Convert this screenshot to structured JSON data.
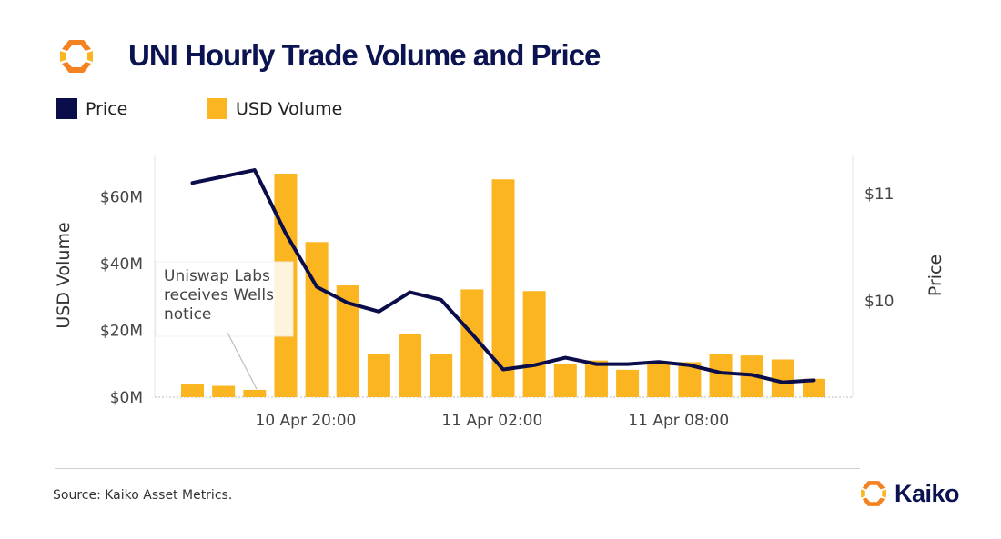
{
  "header": {
    "title": "UNI Hourly Trade Volume and Price",
    "logo": "kaiko-hexagon-logo-icon"
  },
  "legend": [
    {
      "label": "Price",
      "color": "#0b0c4a"
    },
    {
      "label": "USD Volume",
      "color": "#fbb520"
    }
  ],
  "footer": {
    "source": "Source: Kaiko Asset Metrics.",
    "brand": "Kaiko",
    "brand_color": "#f58220"
  },
  "chart_data": {
    "type": "bar",
    "title": "UNI Hourly Trade Volume and Price",
    "ylabel": "USD Volume",
    "y2label": "Price",
    "x_ticks": [
      "10 Apr 20:00",
      "11 Apr 02:00",
      "11 Apr 08:00"
    ],
    "y_ticks": [
      "$0M",
      "$20M",
      "$40M",
      "$60M"
    ],
    "y2_ticks": [
      "$10",
      "$11"
    ],
    "ylim": [
      0,
      70
    ],
    "y2lim": [
      9.1,
      11.35
    ],
    "grid": false,
    "legend_position": "top-left",
    "annotation": {
      "text": "Uniswap Labs receives Wells notice",
      "lines": [
        "Uniswap Labs",
        "receives Wells",
        "notice"
      ]
    },
    "series": [
      {
        "name": "USD Volume",
        "type": "bar",
        "color": "#fbb520",
        "values": [
          3.8,
          3.4,
          2.2,
          67,
          46.5,
          33.5,
          13,
          19,
          13,
          32.3,
          65.3,
          31.8,
          10,
          11,
          8.2,
          10,
          10.5,
          13,
          12.5,
          11.3,
          5.5
        ]
      },
      {
        "name": "Price",
        "type": "line",
        "color": "#0b0c4a",
        "values": [
          11.1,
          11.16,
          11.22,
          10.63,
          10.13,
          9.98,
          9.9,
          10.08,
          10.01,
          9.69,
          9.36,
          9.4,
          9.47,
          9.41,
          9.41,
          9.43,
          9.4,
          9.33,
          9.31,
          9.24,
          9.26
        ]
      }
    ]
  }
}
